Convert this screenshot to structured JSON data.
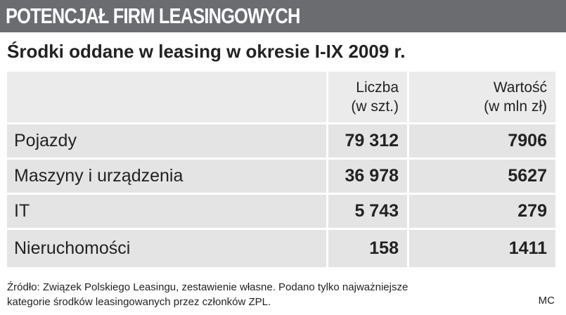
{
  "header": {
    "title": "POTENCJAŁ FIRM LEASINGOWYCH",
    "subtitle": "Środki oddane w leasing w okresie I-IX 2009 r."
  },
  "table": {
    "columns": [
      "",
      "Liczba\n(w szt.)",
      "Wartość\n(w mln zł)"
    ],
    "rows": [
      [
        "Pojazdy",
        "79 312",
        "7906"
      ],
      [
        "Maszyny i urządzenia",
        "36 978",
        "5627"
      ],
      [
        "IT",
        "5 743",
        "279"
      ],
      [
        "Nieruchomości",
        "158",
        "1411"
      ]
    ]
  },
  "footer": {
    "source": "Źródło: Związek Polskiego Leasingu, zestawienie własne. Podano tylko najważniejsze\nkategorie środków leasingowanych przez członków ZPL.",
    "author": "MC"
  }
}
